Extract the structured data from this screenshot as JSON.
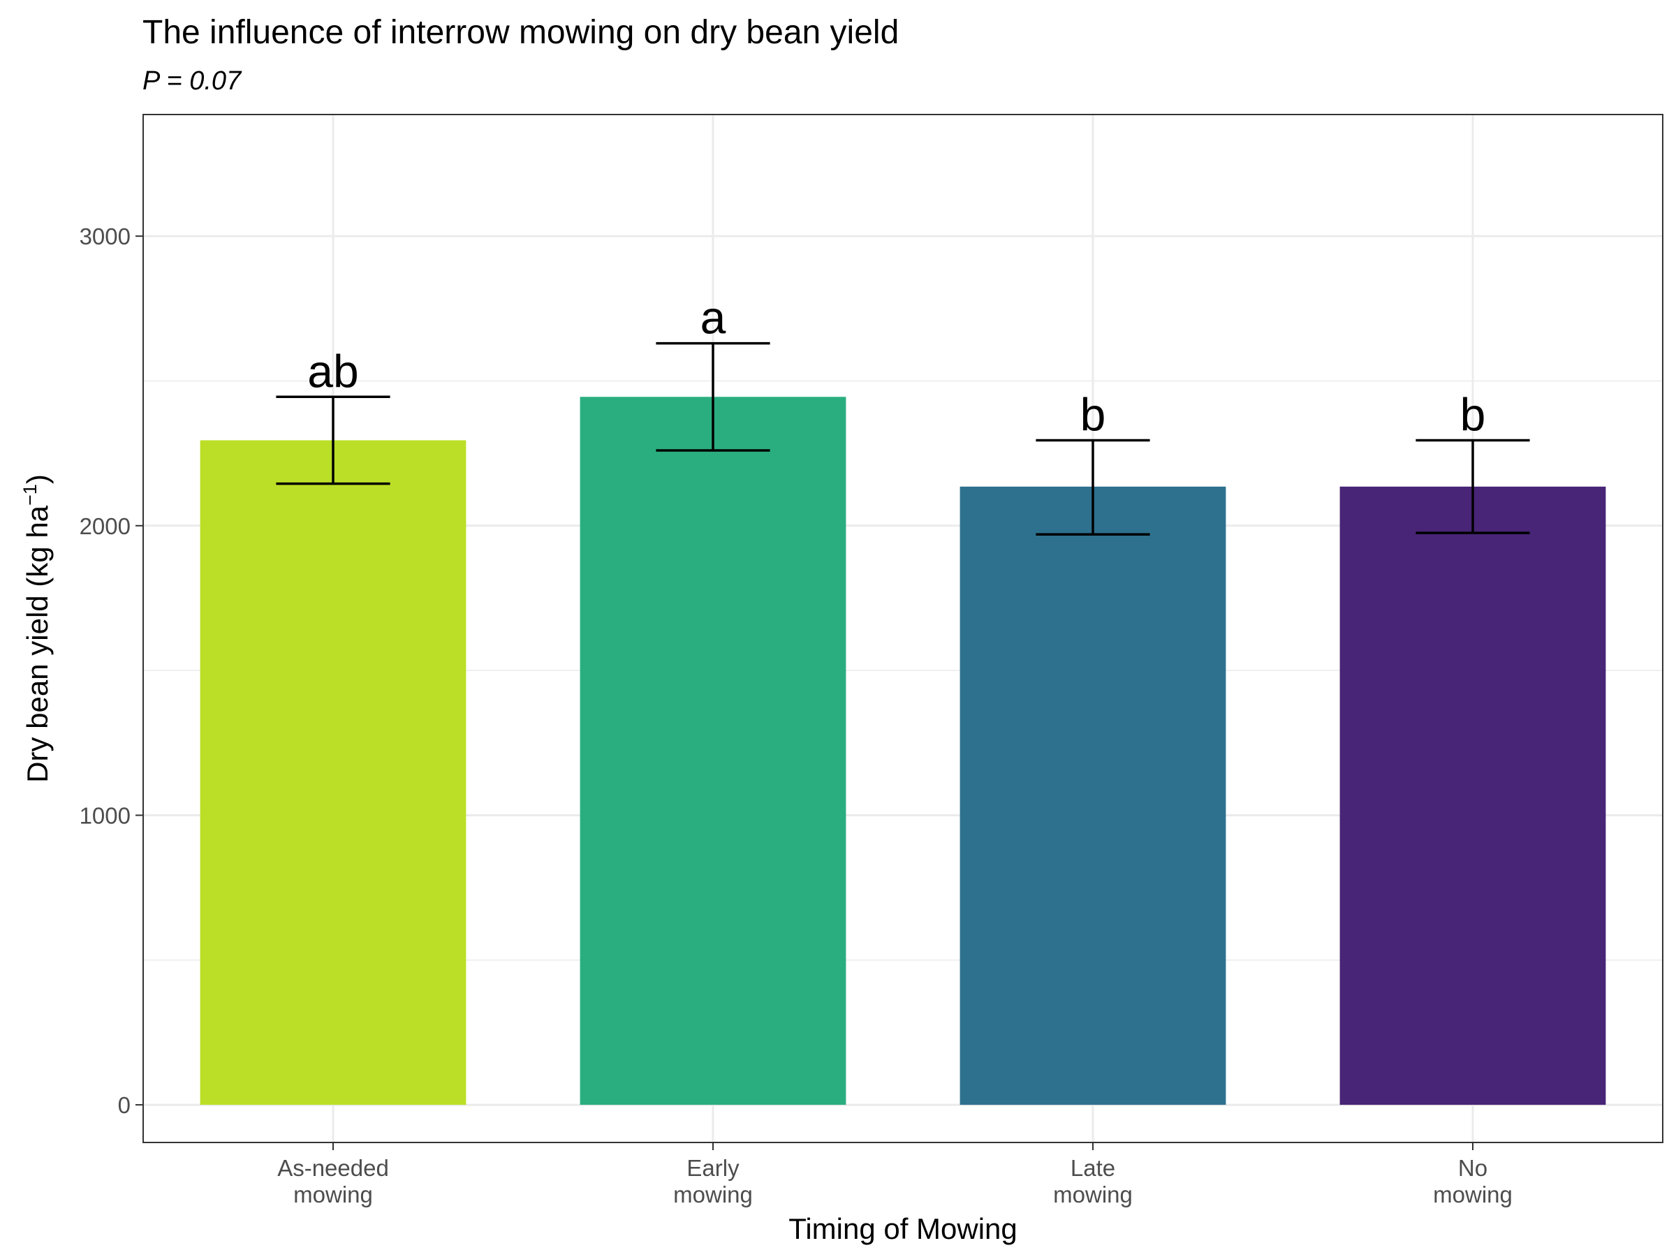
{
  "chart_data": {
    "type": "bar",
    "title": "The influence of interrow mowing on dry bean yield",
    "subtitle": "P = 0.07",
    "xlabel": "Timing of Mowing",
    "ylabel": "Dry bean yield (kg ha",
    "ylabel_superscript": "−1",
    "ylabel_close": ")",
    "ylim": [
      -130,
      3420
    ],
    "yticks": [
      0,
      1000,
      2000,
      3000
    ],
    "grid": true,
    "categories": [
      [
        "As-needed",
        "mowing"
      ],
      [
        "Early",
        "mowing"
      ],
      [
        "Late",
        "mowing"
      ],
      [
        "No",
        "mowing"
      ]
    ],
    "values": [
      2295,
      2445,
      2135,
      2135
    ],
    "error_low": [
      2145,
      2260,
      1970,
      1975
    ],
    "error_high": [
      2445,
      2630,
      2295,
      2295
    ],
    "significance_letters": [
      "ab",
      "a",
      "b",
      "b"
    ],
    "colors": [
      "#bbdf27",
      "#2aae80",
      "#2e718e",
      "#482576"
    ]
  }
}
